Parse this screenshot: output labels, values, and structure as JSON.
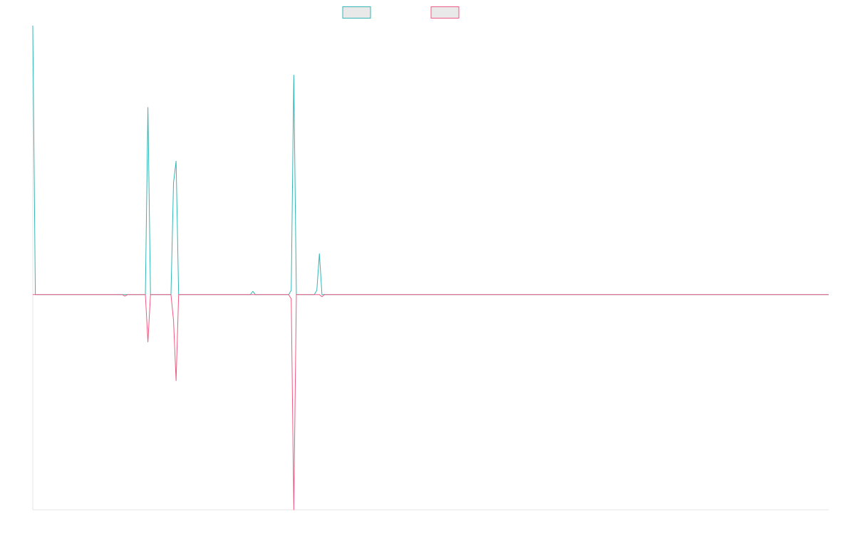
{
  "chart_data": {
    "type": "line",
    "title": "",
    "xlabel": "",
    "ylabel": "",
    "x": [
      0,
      1,
      2,
      3,
      4,
      5,
      6,
      7,
      8,
      9,
      10,
      11,
      12,
      13,
      14,
      15,
      16,
      17,
      18,
      19,
      20,
      21,
      22,
      23,
      24,
      25,
      26,
      27,
      28,
      29,
      30,
      31,
      32,
      33,
      34,
      35,
      36,
      37,
      38,
      39,
      40,
      41,
      42,
      43,
      44,
      45,
      46,
      47,
      48,
      49,
      50,
      51,
      52,
      53,
      54,
      55,
      56,
      57,
      58,
      59,
      60,
      61,
      62,
      63,
      64,
      65,
      66,
      67,
      68,
      69,
      70,
      71,
      72,
      73,
      74,
      75,
      76,
      77,
      78,
      79,
      80,
      81,
      82,
      83,
      84,
      85,
      86,
      87,
      88,
      89,
      90,
      91,
      92,
      93,
      94,
      95,
      96,
      97,
      98,
      99,
      100,
      101,
      102,
      103,
      104,
      105,
      106,
      107,
      108,
      109,
      110,
      111,
      112,
      113,
      114,
      115,
      116,
      117,
      118,
      119,
      120,
      121,
      122,
      123,
      124,
      125,
      126,
      127,
      128,
      129,
      130,
      131,
      132,
      133,
      134,
      135,
      136,
      137,
      138,
      139,
      140,
      141,
      142,
      143,
      144,
      145,
      146,
      147,
      148,
      149,
      150,
      151,
      152,
      153,
      154,
      155,
      156,
      157,
      158,
      159,
      160,
      161,
      162,
      163,
      164,
      165,
      166,
      167,
      168,
      169,
      170,
      171,
      172,
      173,
      174,
      175,
      176,
      177,
      178,
      179,
      180,
      181,
      182,
      183,
      184,
      185,
      186,
      187,
      188,
      189,
      190,
      191,
      192,
      193,
      194,
      195,
      196,
      197,
      198,
      199,
      200,
      201,
      202,
      203,
      204,
      205,
      206,
      207,
      208,
      209,
      210,
      211,
      212,
      213,
      214,
      215,
      216,
      217,
      218,
      219,
      220,
      221,
      222,
      223,
      224,
      225,
      226,
      227,
      228,
      229,
      230,
      231,
      232,
      233,
      234,
      235,
      236,
      237,
      238,
      239,
      240,
      241,
      242,
      243,
      244,
      245,
      246,
      247,
      248,
      249,
      250,
      251,
      252,
      253,
      254,
      255,
      256,
      257,
      258,
      259,
      260,
      261,
      262,
      263,
      264,
      265,
      266,
      267,
      268,
      269,
      270,
      271,
      272,
      273,
      274,
      275,
      276,
      277,
      278,
      279,
      280,
      281,
      282,
      283,
      284,
      285,
      286,
      287,
      288,
      289,
      290,
      291,
      292,
      293,
      294,
      295,
      296,
      297,
      298,
      299,
      300,
      301,
      302,
      303,
      304,
      305,
      306,
      307,
      308,
      309,
      310,
      311
    ],
    "xlim": [
      0,
      311
    ],
    "ylim": [
      -100,
      125
    ],
    "grid": false,
    "legend_position": "top-center",
    "series": [
      {
        "color": "#35b5b5",
        "points": [
          [
            0,
            125
          ],
          [
            1,
            0
          ],
          [
            35,
            0
          ],
          [
            44,
            0
          ],
          [
            45,
            87
          ],
          [
            46,
            0
          ],
          [
            54,
            0
          ],
          [
            55,
            52
          ],
          [
            56,
            62
          ],
          [
            57,
            0
          ],
          [
            85,
            0
          ],
          [
            86,
            1.5
          ],
          [
            87,
            0
          ],
          [
            100,
            0
          ],
          [
            101,
            2
          ],
          [
            102,
            102
          ],
          [
            103,
            0
          ],
          [
            110,
            0
          ],
          [
            111,
            2
          ],
          [
            112,
            19
          ],
          [
            113,
            0
          ],
          [
            311,
            0
          ]
        ]
      },
      {
        "color": "#ef5a82",
        "points": [
          [
            0,
            0
          ],
          [
            35,
            0
          ],
          [
            36,
            -0.7
          ],
          [
            37,
            0
          ],
          [
            44,
            0
          ],
          [
            45,
            -22
          ],
          [
            46,
            0
          ],
          [
            54,
            0
          ],
          [
            55,
            -12
          ],
          [
            56,
            -40
          ],
          [
            57,
            0
          ],
          [
            100,
            0
          ],
          [
            101,
            -2
          ],
          [
            102,
            -100
          ],
          [
            103,
            0
          ],
          [
            112,
            0
          ],
          [
            113,
            -1
          ],
          [
            114,
            0
          ],
          [
            311,
            0
          ]
        ]
      }
    ]
  }
}
